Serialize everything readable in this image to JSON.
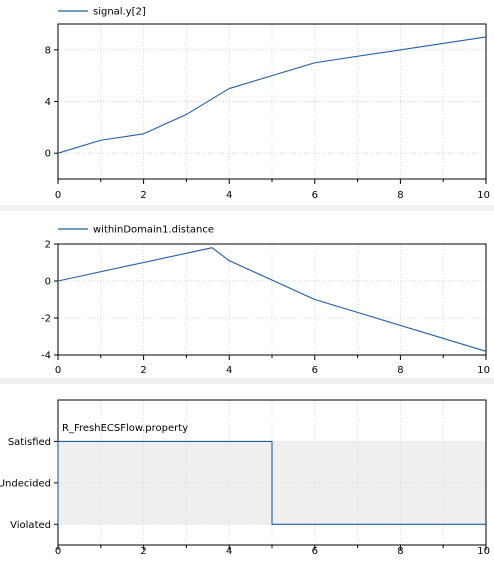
{
  "colors": {
    "series": "#1f5fa8",
    "band": "#efefef",
    "separator": "#eeeeee",
    "grid": "#d6d6d6"
  },
  "chart_data": [
    {
      "type": "line",
      "legend": "signal.y[2]",
      "legend_placement": "top-left",
      "grid": true,
      "xlim": [
        0,
        10
      ],
      "ylim": [
        -2,
        10
      ],
      "x_ticks": [
        0,
        2,
        4,
        6,
        8,
        10
      ],
      "y_ticks": [
        0,
        4,
        8
      ],
      "series": [
        {
          "name": "signal.y[2]",
          "x": [
            0,
            1,
            2,
            3,
            4,
            6,
            10
          ],
          "y": [
            0,
            1,
            1.5,
            3,
            5,
            7,
            9
          ]
        }
      ]
    },
    {
      "type": "line",
      "legend": "withinDomain1.distance",
      "legend_placement": "top-left",
      "grid": true,
      "xlim": [
        0,
        10
      ],
      "ylim": [
        -4,
        2
      ],
      "x_ticks": [
        0,
        2,
        4,
        6,
        8,
        10
      ],
      "y_ticks": [
        -4,
        -2,
        0,
        2
      ],
      "series": [
        {
          "name": "withinDomain1.distance",
          "x": [
            0,
            3.6,
            4,
            6,
            10
          ],
          "y": [
            0,
            1.8,
            1.1,
            -1,
            -3.8
          ]
        }
      ]
    },
    {
      "type": "line",
      "legend": "R_FreshECSFlow.property",
      "legend_placement": "top-left",
      "grid": true,
      "xlim": [
        0,
        10
      ],
      "y_categories": [
        "Violated",
        "Undecided",
        "Satisfied"
      ],
      "ylim": [
        -0.5,
        3
      ],
      "x_ticks": [
        0,
        2,
        4,
        6,
        8,
        10
      ],
      "band": [
        0,
        2
      ],
      "series": [
        {
          "name": "R_FreshECSFlow.property",
          "step": true,
          "x": [
            0,
            0,
            5,
            5,
            10
          ],
          "y": [
            0,
            2,
            2,
            0,
            0
          ]
        }
      ]
    }
  ]
}
